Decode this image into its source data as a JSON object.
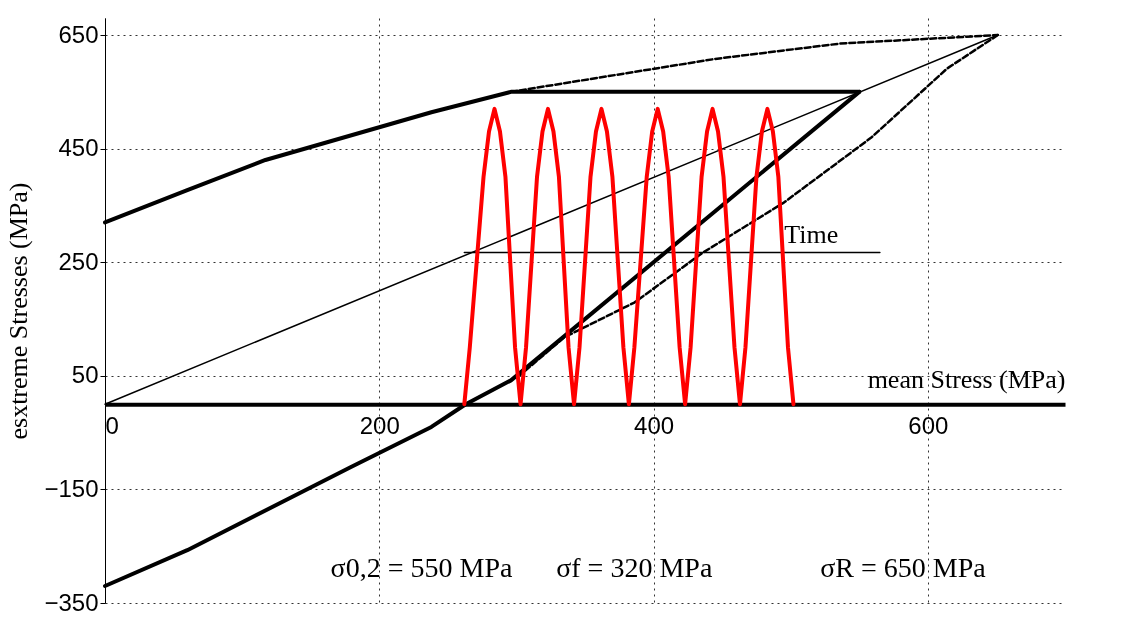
{
  "chart_data": {
    "type": "line",
    "xlabel": "mean Stress (MPa)",
    "ylabel": "esxtreme Stresses (MPa)",
    "xlim": [
      0,
      700
    ],
    "xticks": [
      0,
      200,
      400,
      600
    ],
    "ylim": [
      -350,
      680
    ],
    "yticks": [
      -350,
      -150,
      50,
      250,
      450,
      650
    ],
    "grid": true,
    "series": [
      {
        "color": "#000000",
        "x": [
          0,
          60,
          117,
          238,
          296,
          550
        ],
        "values": [
          320,
          377,
          430,
          514,
          550,
          550
        ]
      },
      {
        "color": "#000000",
        "x": [
          0,
          60,
          179,
          238,
          263,
          296,
          550
        ],
        "values": [
          -320,
          -257,
          -111,
          -40,
          0,
          42,
          550
        ]
      },
      {
        "color": "#000000",
        "line_style": "dashed",
        "x": [
          296,
          445,
          536,
          651
        ],
        "values": [
          550,
          608,
          635,
          650
        ]
      },
      {
        "color": "#000000",
        "line_style": "dashed",
        "x": [
          651,
          614,
          559,
          495,
          436,
          386,
          335,
          303
        ],
        "values": [
          650,
          591,
          470,
          355,
          267,
          179,
          118,
          52
        ]
      },
      {
        "color": "#000000",
        "x": [
          0,
          651
        ],
        "values": [
          0,
          650
        ]
      },
      {
        "color": "#000000",
        "x": [
          262,
          565
        ],
        "values": [
          267,
          267
        ]
      },
      {
        "color": "#ff0000",
        "x": [
          262,
          266,
          276,
          280,
          284,
          288,
          292,
          299,
          303,
          307,
          315,
          319,
          323,
          327,
          331,
          338,
          342,
          346,
          354,
          358,
          362,
          366,
          370,
          378,
          382,
          386,
          395,
          399,
          403,
          407,
          411,
          419,
          423,
          427,
          435,
          439,
          443,
          447,
          451,
          459,
          463,
          467,
          475,
          479,
          483,
          487,
          491,
          498,
          502
        ],
        "values": [
          0,
          100,
          400,
          480,
          520,
          480,
          400,
          100,
          0,
          100,
          400,
          480,
          520,
          480,
          400,
          100,
          0,
          100,
          400,
          480,
          520,
          480,
          400,
          100,
          0,
          100,
          400,
          480,
          520,
          480,
          400,
          100,
          0,
          100,
          400,
          480,
          520,
          480,
          400,
          100,
          0,
          100,
          400,
          480,
          520,
          480,
          400,
          100,
          0
        ]
      }
    ],
    "annotations": [
      {
        "text": "Time",
        "x": 515,
        "y": 267
      },
      "σ0,2 = 550 MPa",
      "σf = 320 MPa",
      "σR = 650 MPa"
    ]
  }
}
